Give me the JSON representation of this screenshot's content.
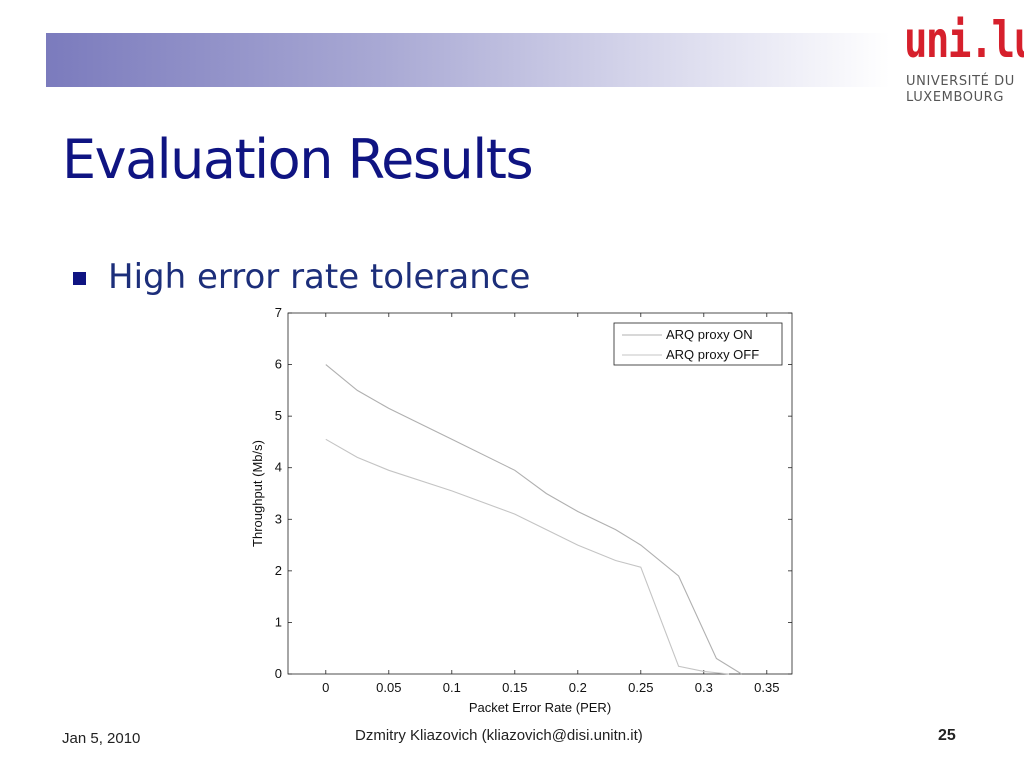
{
  "header": {
    "bar_colors": [
      "#7b7bbd",
      "#ffffff"
    ],
    "logo": {
      "mark": "uni.lu",
      "line1": "UNIVERSITÉ DU",
      "line2": "LUXEMBOURG",
      "color": "#d6202c"
    }
  },
  "slide": {
    "title": "Evaluation Results",
    "title_color": "#0f1482",
    "bullet": "High error rate tolerance"
  },
  "chart_data": {
    "type": "line",
    "title": "",
    "xlabel": "Packet Error Rate (PER)",
    "ylabel": "Throughput (Mb/s)",
    "xlim": [
      -0.03,
      0.37
    ],
    "ylim": [
      0,
      7
    ],
    "x_ticks": [
      0,
      0.05,
      0.1,
      0.15,
      0.2,
      0.25,
      0.3,
      0.35
    ],
    "x_tick_labels": [
      "0",
      "0.05",
      "0.1",
      "0.15",
      "0.2",
      "0.25",
      "0.3",
      "0.35"
    ],
    "y_ticks": [
      0,
      1,
      2,
      3,
      4,
      5,
      6,
      7
    ],
    "y_tick_labels": [
      "0",
      "1",
      "2",
      "3",
      "4",
      "5",
      "6",
      "7"
    ],
    "grid": false,
    "legend": "top-right",
    "series": [
      {
        "name": "ARQ proxy ON",
        "color": "#b0b0b0",
        "x": [
          0,
          0.025,
          0.05,
          0.1,
          0.15,
          0.175,
          0.2,
          0.23,
          0.25,
          0.28,
          0.31,
          0.33
        ],
        "y": [
          6.0,
          5.5,
          5.15,
          4.55,
          3.95,
          3.5,
          3.15,
          2.8,
          2.5,
          1.9,
          0.3,
          0.0
        ]
      },
      {
        "name": "ARQ proxy OFF",
        "color": "#c4c4c4",
        "x": [
          0,
          0.025,
          0.05,
          0.1,
          0.15,
          0.175,
          0.2,
          0.23,
          0.25,
          0.28,
          0.3,
          0.32
        ],
        "y": [
          4.55,
          4.2,
          3.95,
          3.55,
          3.1,
          2.8,
          2.5,
          2.2,
          2.07,
          0.15,
          0.05,
          0.0
        ]
      }
    ]
  },
  "footer": {
    "date": "Jan 5, 2010",
    "author": "Dzmitry Kliazovich (kliazovich@disi.unitn.it)",
    "page": "25"
  }
}
